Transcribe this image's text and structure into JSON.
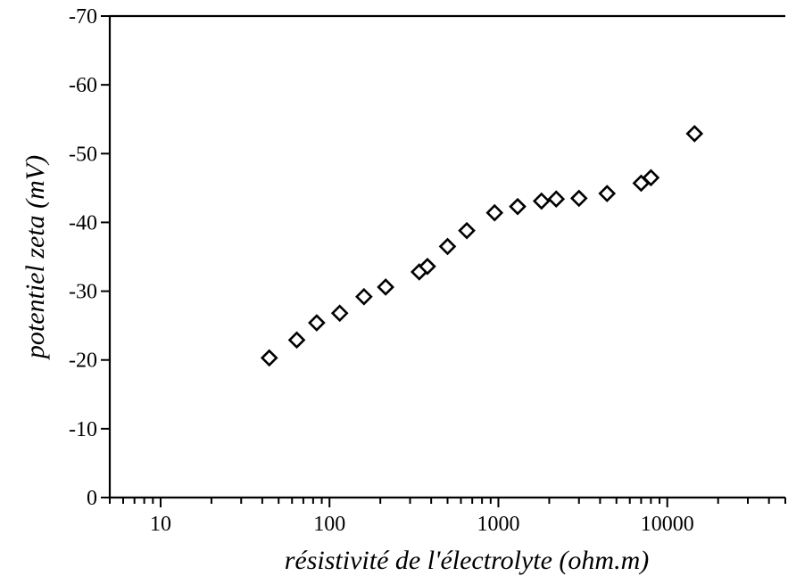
{
  "chart_data": {
    "type": "scatter",
    "title": "",
    "xlabel": "résistivité de l'électrolyte (ohm.m)",
    "ylabel": "potentiel zeta (mV)",
    "xscale": "log",
    "xlim": [
      5,
      50000
    ],
    "ylim": [
      0,
      -70
    ],
    "grid": false,
    "x_ticks": [
      "10",
      "100",
      "1000",
      "10000"
    ],
    "y_ticks": [
      "0",
      "-10",
      "-20",
      "-30",
      "-40",
      "-50",
      "-60",
      "-70"
    ],
    "series": [
      {
        "marker": "diamond-open",
        "color": "#000000",
        "x": [
          44,
          64,
          84,
          115,
          160,
          215,
          340,
          380,
          500,
          650,
          950,
          1300,
          1800,
          2200,
          3000,
          4400,
          7000,
          8000,
          14500
        ],
        "y": [
          -20.3,
          -22.9,
          -25.4,
          -26.8,
          -29.2,
          -30.6,
          -32.8,
          -33.6,
          -36.5,
          -38.8,
          -41.4,
          -42.3,
          -43.1,
          -43.4,
          -43.5,
          -44.2,
          -45.7,
          -46.5,
          -52.9
        ]
      }
    ]
  }
}
